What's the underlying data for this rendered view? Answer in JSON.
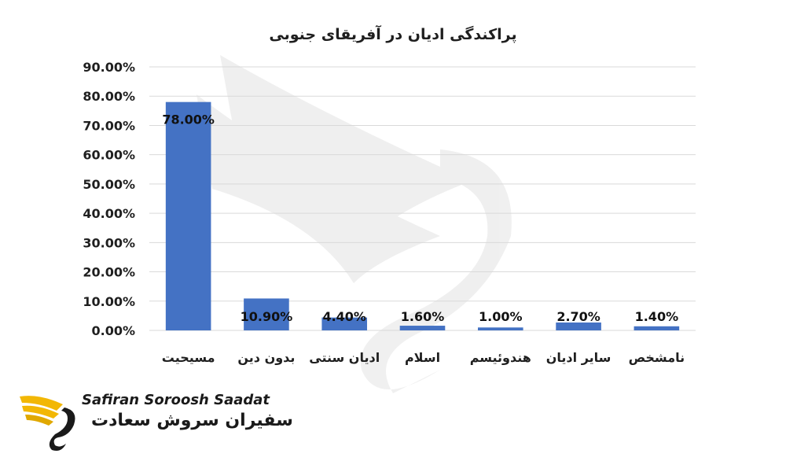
{
  "chart_data": {
    "type": "bar",
    "title": "پراکندگی ادیان در آفریقای جنوبی",
    "xlabel": "",
    "ylabel": "",
    "categories": [
      "مسیحیت",
      "بدون دین",
      "ادیان سنتی",
      "اسلام",
      "هندوئیسم",
      "سایر ادیان",
      "نامشخص"
    ],
    "values": [
      78.0,
      10.9,
      4.4,
      1.6,
      1.0,
      2.7,
      1.4
    ],
    "data_labels": [
      "78.00%",
      "10.90%",
      "4.40%",
      "1.60%",
      "1.00%",
      "2.70%",
      "1.40%"
    ],
    "y_ticks": [
      "0.00%",
      "10.00%",
      "20.00%",
      "30.00%",
      "40.00%",
      "50.00%",
      "60.00%",
      "70.00%",
      "80.00%",
      "90.00%"
    ],
    "ylim": [
      0,
      90
    ],
    "grid": true,
    "legend": "none",
    "bar_color": "#4472c4",
    "grid_color": "#d9d9d9"
  },
  "logo": {
    "text_en": "Safiran Soroosh Saadat",
    "text_fa": "سفیران سروش سعادت",
    "accent_color": "#f2b705"
  }
}
